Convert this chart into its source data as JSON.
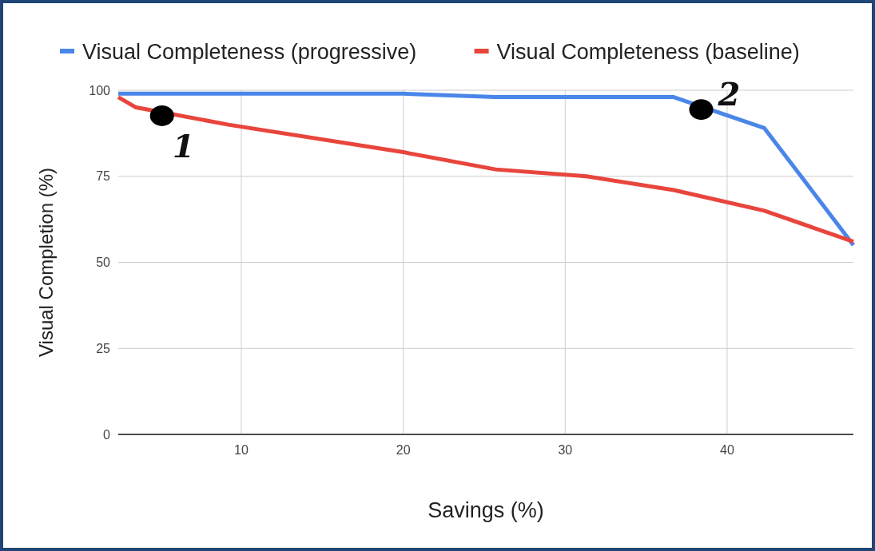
{
  "chart_data": {
    "type": "line",
    "xlabel": "Savings (%)",
    "ylabel": "Visual Completion (%)",
    "series": [
      {
        "name": "Visual Completeness (progressive)",
        "color": "#4a86e8",
        "x": [
          2.4,
          20,
          25.7,
          36.7,
          42.3,
          47.8
        ],
        "values": [
          99,
          99,
          98,
          98,
          89,
          55
        ]
      },
      {
        "name": "Visual Completeness (baseline)",
        "color": "#e8453c",
        "x": [
          2.4,
          3.5,
          9.2,
          20,
          25.7,
          31.3,
          36.7,
          42.3,
          47.8
        ],
        "values": [
          98,
          95,
          90,
          82,
          77,
          75,
          71,
          65,
          56
        ]
      }
    ],
    "xlim": [
      2.4,
      47.8
    ],
    "xticks": [
      10,
      20,
      30,
      40
    ],
    "ylim": [
      0,
      100
    ],
    "yticks": [
      0,
      25,
      50,
      75,
      100
    ],
    "annotations": [
      {
        "text": "1",
        "x": 5.1,
        "y": 92.6
      },
      {
        "text": "2",
        "x": 38.4,
        "y": 94.4
      }
    ],
    "grid": true,
    "legend": "top",
    "marker": "none",
    "line_style": "solid"
  }
}
